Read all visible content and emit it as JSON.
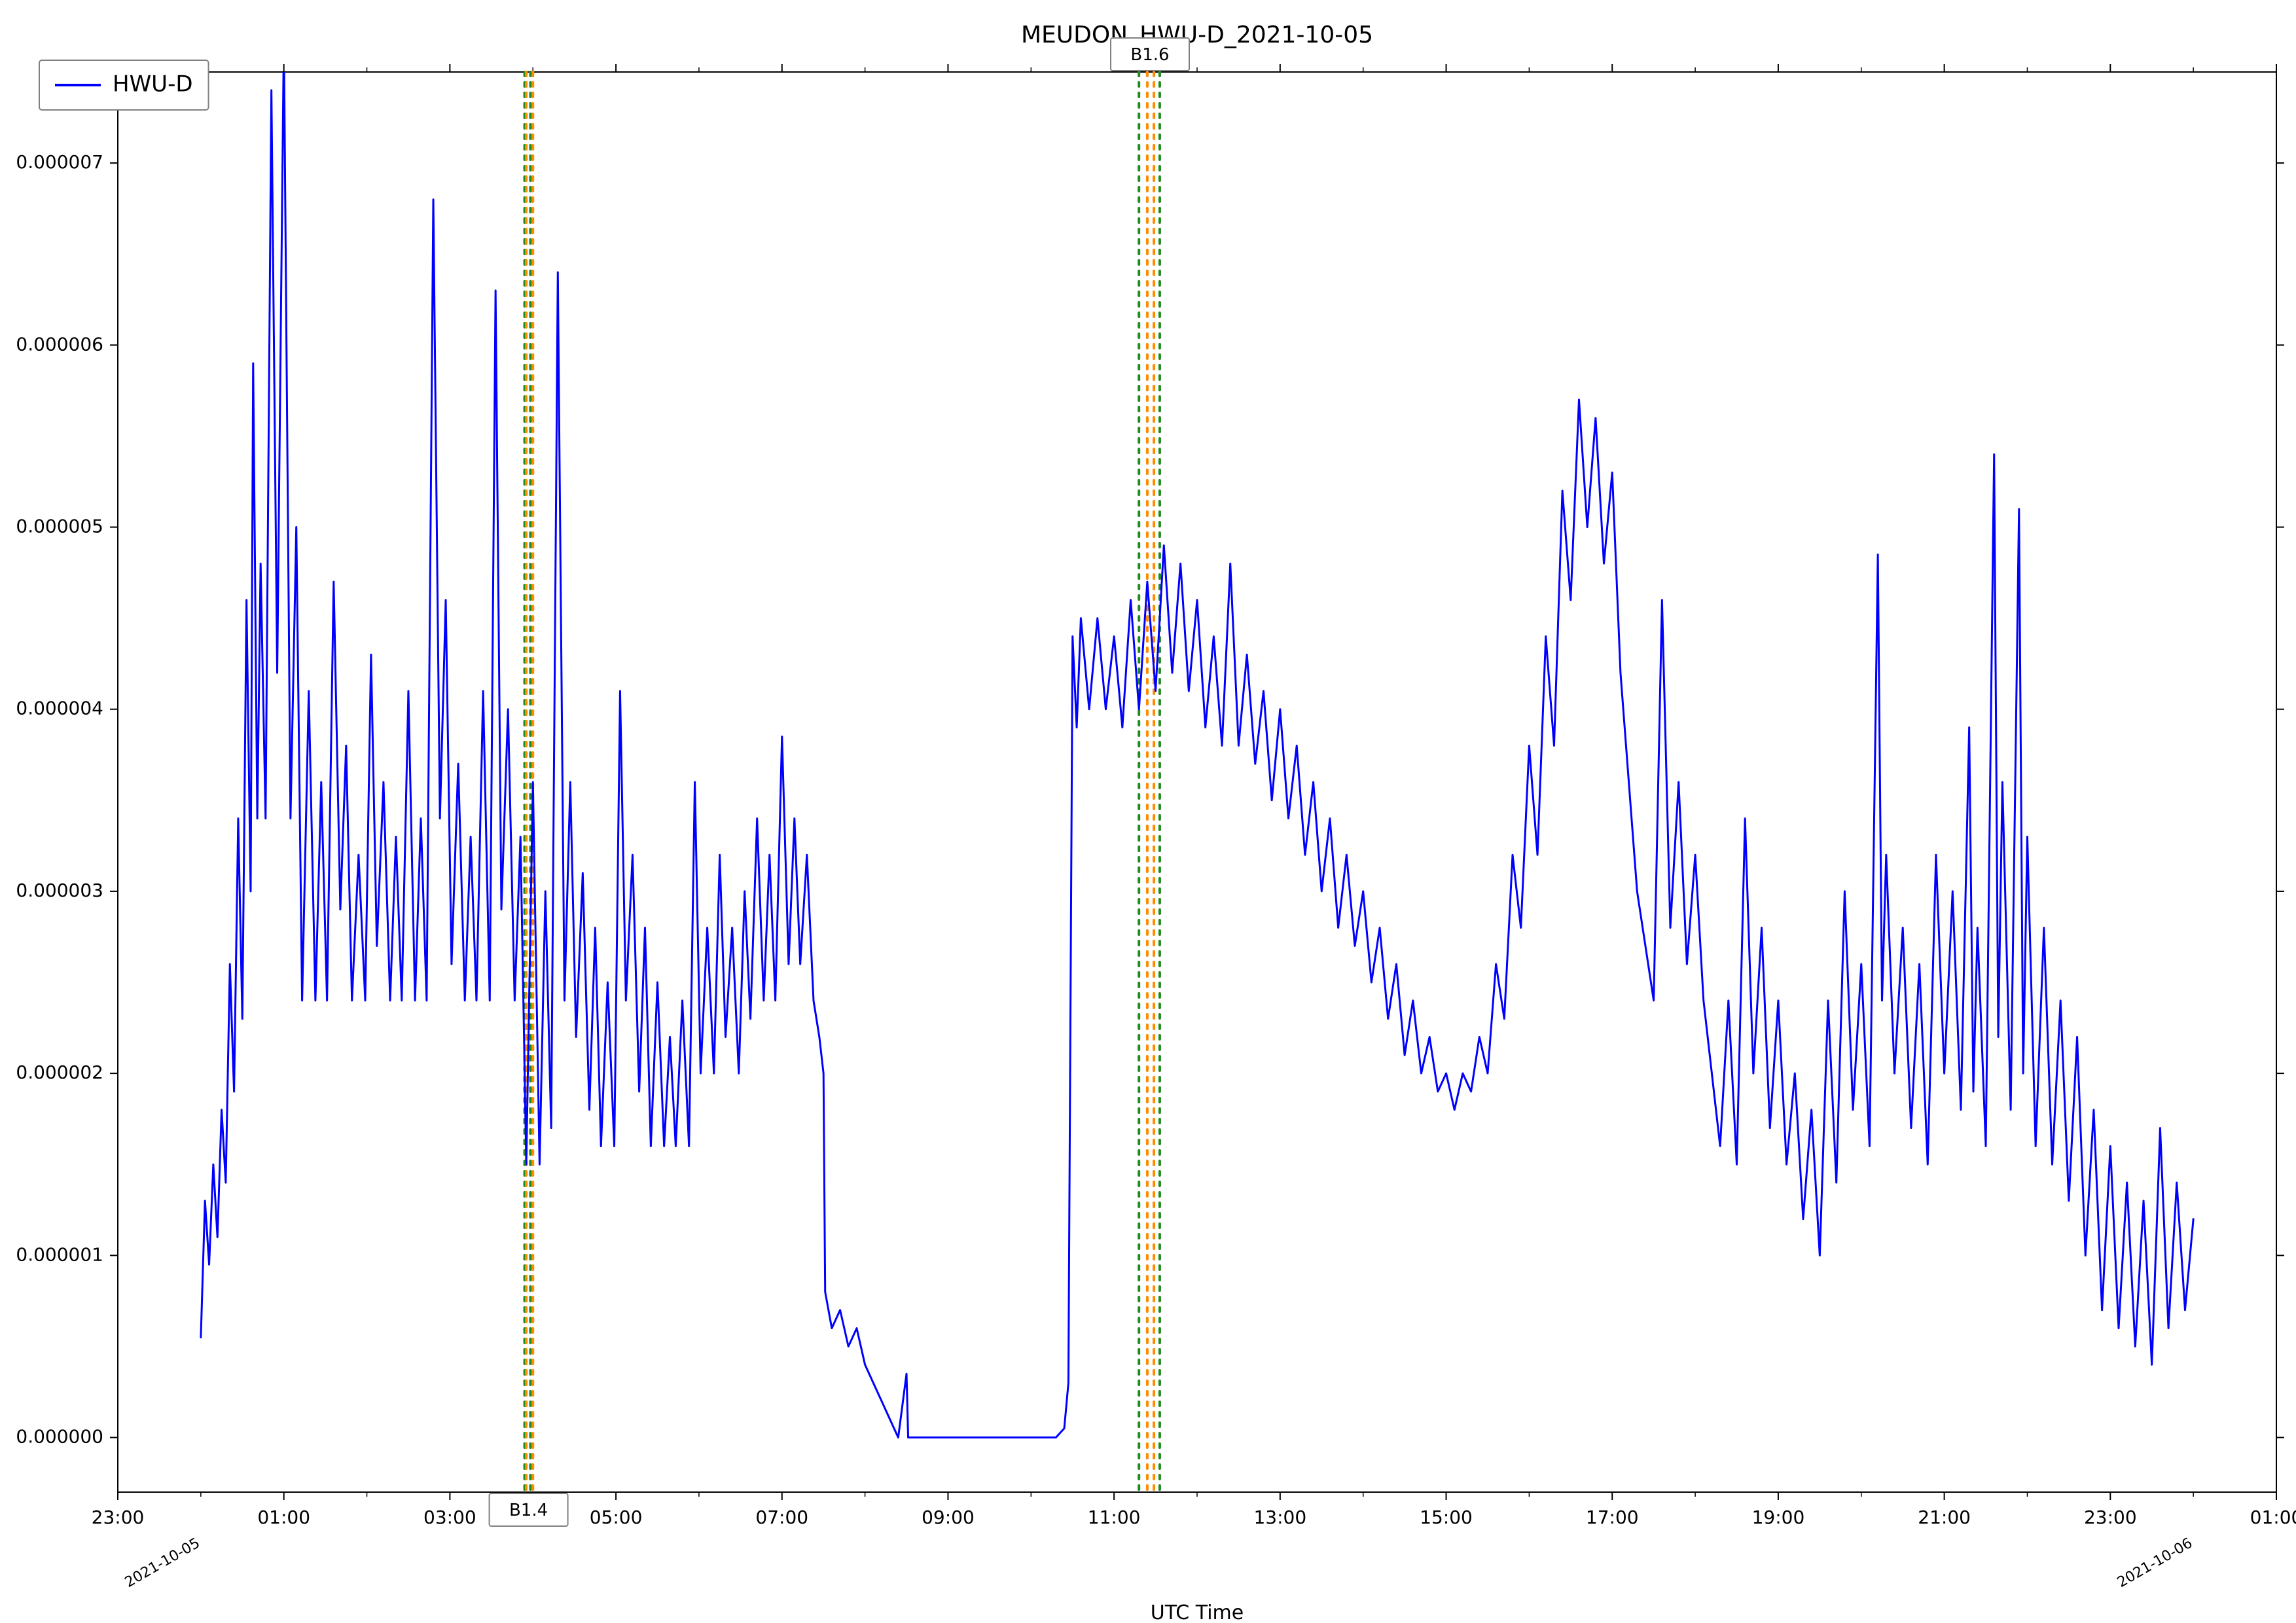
{
  "title": "MEUDON_HWU-D_2021-10-05",
  "title_fontsize": 36,
  "xlabel": "UTC Time",
  "label_fontsize": 30,
  "tick_fontsize": 28,
  "event_fontsize": 26,
  "legend_fontsize": 34,
  "secondary_date_fontsize": 22,
  "background_color": "#ffffff",
  "axis_color": "#000000",
  "line_color": "#0000ff",
  "line_width": 3,
  "event_green": "#228b22",
  "event_orange": "#ff8c00",
  "event_line_width": 4,
  "legend": {
    "label": "HWU-D",
    "color": "#0000ff"
  },
  "xlim": [
    -1.0,
    25.0
  ],
  "ylim": [
    -0.3,
    7.5
  ],
  "xticks": [
    -1,
    1,
    3,
    5,
    7,
    9,
    11,
    13,
    15,
    17,
    19,
    21,
    23,
    25
  ],
  "xtick_labels": [
    "23:00",
    "01:00",
    "03:00",
    "05:00",
    "07:00",
    "09:00",
    "11:00",
    "13:00",
    "15:00",
    "17:00",
    "19:00",
    "21:00",
    "23:00",
    "01:00"
  ],
  "yticks": [
    0,
    1,
    2,
    3,
    4,
    5,
    6,
    7
  ],
  "ytick_labels": [
    "0.000000",
    "0.000001",
    "0.000002",
    "0.000003",
    "0.000004",
    "0.000005",
    "0.000006",
    "0.000007"
  ],
  "secondary_dates": [
    {
      "x": 0.0,
      "text": "2021-10-05"
    },
    {
      "x": 24.0,
      "text": "2021-10-06"
    }
  ],
  "events": [
    {
      "id": "b14",
      "label": "B1.4",
      "label_pos": "bottom",
      "green": [
        3.9,
        3.97
      ],
      "orange": [
        3.92,
        4.0
      ]
    },
    {
      "id": "b16",
      "label": "B1.6",
      "label_pos": "top",
      "green": [
        11.3,
        11.55
      ],
      "orange": [
        11.4,
        11.48
      ]
    }
  ],
  "series": [
    {
      "x": 0.0,
      "y": 0.55
    },
    {
      "x": 0.05,
      "y": 1.3
    },
    {
      "x": 0.1,
      "y": 0.95
    },
    {
      "x": 0.15,
      "y": 1.5
    },
    {
      "x": 0.2,
      "y": 1.1
    },
    {
      "x": 0.25,
      "y": 1.8
    },
    {
      "x": 0.3,
      "y": 1.4
    },
    {
      "x": 0.35,
      "y": 2.6
    },
    {
      "x": 0.4,
      "y": 1.9
    },
    {
      "x": 0.45,
      "y": 3.4
    },
    {
      "x": 0.5,
      "y": 2.3
    },
    {
      "x": 0.55,
      "y": 4.6
    },
    {
      "x": 0.6,
      "y": 3.0
    },
    {
      "x": 0.63,
      "y": 5.9
    },
    {
      "x": 0.68,
      "y": 3.4
    },
    {
      "x": 0.72,
      "y": 4.8
    },
    {
      "x": 0.78,
      "y": 3.4
    },
    {
      "x": 0.85,
      "y": 7.4
    },
    {
      "x": 0.92,
      "y": 4.2
    },
    {
      "x": 1.0,
      "y": 7.7
    },
    {
      "x": 1.08,
      "y": 3.4
    },
    {
      "x": 1.15,
      "y": 5.0
    },
    {
      "x": 1.22,
      "y": 2.4
    },
    {
      "x": 1.3,
      "y": 4.1
    },
    {
      "x": 1.38,
      "y": 2.4
    },
    {
      "x": 1.45,
      "y": 3.6
    },
    {
      "x": 1.52,
      "y": 2.4
    },
    {
      "x": 1.6,
      "y": 4.7
    },
    {
      "x": 1.68,
      "y": 2.9
    },
    {
      "x": 1.75,
      "y": 3.8
    },
    {
      "x": 1.82,
      "y": 2.4
    },
    {
      "x": 1.9,
      "y": 3.2
    },
    {
      "x": 1.98,
      "y": 2.4
    },
    {
      "x": 2.05,
      "y": 4.3
    },
    {
      "x": 2.12,
      "y": 2.7
    },
    {
      "x": 2.2,
      "y": 3.6
    },
    {
      "x": 2.28,
      "y": 2.4
    },
    {
      "x": 2.35,
      "y": 3.3
    },
    {
      "x": 2.42,
      "y": 2.4
    },
    {
      "x": 2.5,
      "y": 4.1
    },
    {
      "x": 2.58,
      "y": 2.4
    },
    {
      "x": 2.65,
      "y": 3.4
    },
    {
      "x": 2.72,
      "y": 2.4
    },
    {
      "x": 2.8,
      "y": 6.8
    },
    {
      "x": 2.88,
      "y": 3.4
    },
    {
      "x": 2.95,
      "y": 4.6
    },
    {
      "x": 3.02,
      "y": 2.6
    },
    {
      "x": 3.1,
      "y": 3.7
    },
    {
      "x": 3.18,
      "y": 2.4
    },
    {
      "x": 3.25,
      "y": 3.3
    },
    {
      "x": 3.32,
      "y": 2.4
    },
    {
      "x": 3.4,
      "y": 4.1
    },
    {
      "x": 3.48,
      "y": 2.4
    },
    {
      "x": 3.55,
      "y": 6.3
    },
    {
      "x": 3.62,
      "y": 2.9
    },
    {
      "x": 3.7,
      "y": 4.0
    },
    {
      "x": 3.78,
      "y": 2.4
    },
    {
      "x": 3.85,
      "y": 3.3
    },
    {
      "x": 3.92,
      "y": 1.5
    },
    {
      "x": 4.0,
      "y": 3.6
    },
    {
      "x": 4.08,
      "y": 1.5
    },
    {
      "x": 4.15,
      "y": 3.0
    },
    {
      "x": 4.22,
      "y": 1.7
    },
    {
      "x": 4.3,
      "y": 6.4
    },
    {
      "x": 4.38,
      "y": 2.4
    },
    {
      "x": 4.45,
      "y": 3.6
    },
    {
      "x": 4.52,
      "y": 2.2
    },
    {
      "x": 4.6,
      "y": 3.1
    },
    {
      "x": 4.68,
      "y": 1.8
    },
    {
      "x": 4.75,
      "y": 2.8
    },
    {
      "x": 4.82,
      "y": 1.6
    },
    {
      "x": 4.9,
      "y": 2.5
    },
    {
      "x": 4.98,
      "y": 1.6
    },
    {
      "x": 5.05,
      "y": 4.1
    },
    {
      "x": 5.12,
      "y": 2.4
    },
    {
      "x": 5.2,
      "y": 3.2
    },
    {
      "x": 5.28,
      "y": 1.9
    },
    {
      "x": 5.35,
      "y": 2.8
    },
    {
      "x": 5.42,
      "y": 1.6
    },
    {
      "x": 5.5,
      "y": 2.5
    },
    {
      "x": 5.58,
      "y": 1.6
    },
    {
      "x": 5.65,
      "y": 2.2
    },
    {
      "x": 5.72,
      "y": 1.6
    },
    {
      "x": 5.8,
      "y": 2.4
    },
    {
      "x": 5.88,
      "y": 1.6
    },
    {
      "x": 5.95,
      "y": 3.6
    },
    {
      "x": 6.02,
      "y": 2.0
    },
    {
      "x": 6.1,
      "y": 2.8
    },
    {
      "x": 6.18,
      "y": 2.0
    },
    {
      "x": 6.25,
      "y": 3.2
    },
    {
      "x": 6.32,
      "y": 2.2
    },
    {
      "x": 6.4,
      "y": 2.8
    },
    {
      "x": 6.48,
      "y": 2.0
    },
    {
      "x": 6.55,
      "y": 3.0
    },
    {
      "x": 6.62,
      "y": 2.3
    },
    {
      "x": 6.7,
      "y": 3.4
    },
    {
      "x": 6.78,
      "y": 2.4
    },
    {
      "x": 6.85,
      "y": 3.2
    },
    {
      "x": 6.92,
      "y": 2.4
    },
    {
      "x": 7.0,
      "y": 3.85
    },
    {
      "x": 7.08,
      "y": 2.6
    },
    {
      "x": 7.15,
      "y": 3.4
    },
    {
      "x": 7.22,
      "y": 2.6
    },
    {
      "x": 7.3,
      "y": 3.2
    },
    {
      "x": 7.38,
      "y": 2.4
    },
    {
      "x": 7.45,
      "y": 2.2
    },
    {
      "x": 7.5,
      "y": 2.0
    },
    {
      "x": 7.52,
      "y": 0.8
    },
    {
      "x": 7.6,
      "y": 0.6
    },
    {
      "x": 7.7,
      "y": 0.7
    },
    {
      "x": 7.8,
      "y": 0.5
    },
    {
      "x": 7.9,
      "y": 0.6
    },
    {
      "x": 8.0,
      "y": 0.4
    },
    {
      "x": 8.1,
      "y": 0.3
    },
    {
      "x": 8.2,
      "y": 0.2
    },
    {
      "x": 8.3,
      "y": 0.1
    },
    {
      "x": 8.4,
      "y": 0.0
    },
    {
      "x": 8.5,
      "y": 0.35
    },
    {
      "x": 8.52,
      "y": 0.0
    },
    {
      "x": 8.7,
      "y": 0.0
    },
    {
      "x": 9.0,
      "y": 0.0
    },
    {
      "x": 9.5,
      "y": 0.0
    },
    {
      "x": 10.0,
      "y": 0.0
    },
    {
      "x": 10.3,
      "y": 0.0
    },
    {
      "x": 10.4,
      "y": 0.05
    },
    {
      "x": 10.45,
      "y": 0.3
    },
    {
      "x": 10.5,
      "y": 4.4
    },
    {
      "x": 10.55,
      "y": 3.9
    },
    {
      "x": 10.6,
      "y": 4.5
    },
    {
      "x": 10.7,
      "y": 4.0
    },
    {
      "x": 10.8,
      "y": 4.5
    },
    {
      "x": 10.9,
      "y": 4.0
    },
    {
      "x": 11.0,
      "y": 4.4
    },
    {
      "x": 11.1,
      "y": 3.9
    },
    {
      "x": 11.2,
      "y": 4.6
    },
    {
      "x": 11.3,
      "y": 4.0
    },
    {
      "x": 11.4,
      "y": 4.7
    },
    {
      "x": 11.5,
      "y": 4.1
    },
    {
      "x": 11.6,
      "y": 4.9
    },
    {
      "x": 11.7,
      "y": 4.2
    },
    {
      "x": 11.8,
      "y": 4.8
    },
    {
      "x": 11.9,
      "y": 4.1
    },
    {
      "x": 12.0,
      "y": 4.6
    },
    {
      "x": 12.1,
      "y": 3.9
    },
    {
      "x": 12.2,
      "y": 4.4
    },
    {
      "x": 12.3,
      "y": 3.8
    },
    {
      "x": 12.4,
      "y": 4.8
    },
    {
      "x": 12.5,
      "y": 3.8
    },
    {
      "x": 12.6,
      "y": 4.3
    },
    {
      "x": 12.7,
      "y": 3.7
    },
    {
      "x": 12.8,
      "y": 4.1
    },
    {
      "x": 12.9,
      "y": 3.5
    },
    {
      "x": 13.0,
      "y": 4.0
    },
    {
      "x": 13.1,
      "y": 3.4
    },
    {
      "x": 13.2,
      "y": 3.8
    },
    {
      "x": 13.3,
      "y": 3.2
    },
    {
      "x": 13.4,
      "y": 3.6
    },
    {
      "x": 13.5,
      "y": 3.0
    },
    {
      "x": 13.6,
      "y": 3.4
    },
    {
      "x": 13.7,
      "y": 2.8
    },
    {
      "x": 13.8,
      "y": 3.2
    },
    {
      "x": 13.9,
      "y": 2.7
    },
    {
      "x": 14.0,
      "y": 3.0
    },
    {
      "x": 14.1,
      "y": 2.5
    },
    {
      "x": 14.2,
      "y": 2.8
    },
    {
      "x": 14.3,
      "y": 2.3
    },
    {
      "x": 14.4,
      "y": 2.6
    },
    {
      "x": 14.5,
      "y": 2.1
    },
    {
      "x": 14.6,
      "y": 2.4
    },
    {
      "x": 14.7,
      "y": 2.0
    },
    {
      "x": 14.8,
      "y": 2.2
    },
    {
      "x": 14.9,
      "y": 1.9
    },
    {
      "x": 15.0,
      "y": 2.0
    },
    {
      "x": 15.1,
      "y": 1.8
    },
    {
      "x": 15.2,
      "y": 2.0
    },
    {
      "x": 15.3,
      "y": 1.9
    },
    {
      "x": 15.4,
      "y": 2.2
    },
    {
      "x": 15.5,
      "y": 2.0
    },
    {
      "x": 15.6,
      "y": 2.6
    },
    {
      "x": 15.7,
      "y": 2.3
    },
    {
      "x": 15.8,
      "y": 3.2
    },
    {
      "x": 15.9,
      "y": 2.8
    },
    {
      "x": 16.0,
      "y": 3.8
    },
    {
      "x": 16.1,
      "y": 3.2
    },
    {
      "x": 16.2,
      "y": 4.4
    },
    {
      "x": 16.3,
      "y": 3.8
    },
    {
      "x": 16.4,
      "y": 5.2
    },
    {
      "x": 16.5,
      "y": 4.6
    },
    {
      "x": 16.6,
      "y": 5.7
    },
    {
      "x": 16.7,
      "y": 5.0
    },
    {
      "x": 16.8,
      "y": 5.6
    },
    {
      "x": 16.9,
      "y": 4.8
    },
    {
      "x": 17.0,
      "y": 5.3
    },
    {
      "x": 17.1,
      "y": 4.2
    },
    {
      "x": 17.2,
      "y": 3.6
    },
    {
      "x": 17.3,
      "y": 3.0
    },
    {
      "x": 17.4,
      "y": 2.7
    },
    {
      "x": 17.5,
      "y": 2.4
    },
    {
      "x": 17.6,
      "y": 4.6
    },
    {
      "x": 17.7,
      "y": 2.8
    },
    {
      "x": 17.8,
      "y": 3.6
    },
    {
      "x": 17.9,
      "y": 2.6
    },
    {
      "x": 18.0,
      "y": 3.2
    },
    {
      "x": 18.1,
      "y": 2.4
    },
    {
      "x": 18.2,
      "y": 2.0
    },
    {
      "x": 18.3,
      "y": 1.6
    },
    {
      "x": 18.4,
      "y": 2.4
    },
    {
      "x": 18.5,
      "y": 1.5
    },
    {
      "x": 18.6,
      "y": 3.4
    },
    {
      "x": 18.7,
      "y": 2.0
    },
    {
      "x": 18.8,
      "y": 2.8
    },
    {
      "x": 18.9,
      "y": 1.7
    },
    {
      "x": 19.0,
      "y": 2.4
    },
    {
      "x": 19.1,
      "y": 1.5
    },
    {
      "x": 19.2,
      "y": 2.0
    },
    {
      "x": 19.3,
      "y": 1.2
    },
    {
      "x": 19.4,
      "y": 1.8
    },
    {
      "x": 19.5,
      "y": 1.0
    },
    {
      "x": 19.6,
      "y": 2.4
    },
    {
      "x": 19.7,
      "y": 1.4
    },
    {
      "x": 19.8,
      "y": 3.0
    },
    {
      "x": 19.9,
      "y": 1.8
    },
    {
      "x": 20.0,
      "y": 2.6
    },
    {
      "x": 20.1,
      "y": 1.6
    },
    {
      "x": 20.2,
      "y": 4.85
    },
    {
      "x": 20.25,
      "y": 2.4
    },
    {
      "x": 20.3,
      "y": 3.2
    },
    {
      "x": 20.4,
      "y": 2.0
    },
    {
      "x": 20.5,
      "y": 2.8
    },
    {
      "x": 20.6,
      "y": 1.7
    },
    {
      "x": 20.7,
      "y": 2.6
    },
    {
      "x": 20.8,
      "y": 1.5
    },
    {
      "x": 20.9,
      "y": 3.2
    },
    {
      "x": 21.0,
      "y": 2.0
    },
    {
      "x": 21.1,
      "y": 3.0
    },
    {
      "x": 21.2,
      "y": 1.8
    },
    {
      "x": 21.3,
      "y": 3.9
    },
    {
      "x": 21.35,
      "y": 1.9
    },
    {
      "x": 21.4,
      "y": 2.8
    },
    {
      "x": 21.5,
      "y": 1.6
    },
    {
      "x": 21.6,
      "y": 5.4
    },
    {
      "x": 21.65,
      "y": 2.2
    },
    {
      "x": 21.7,
      "y": 3.6
    },
    {
      "x": 21.8,
      "y": 1.8
    },
    {
      "x": 21.9,
      "y": 5.1
    },
    {
      "x": 21.95,
      "y": 2.0
    },
    {
      "x": 22.0,
      "y": 3.3
    },
    {
      "x": 22.1,
      "y": 1.6
    },
    {
      "x": 22.2,
      "y": 2.8
    },
    {
      "x": 22.3,
      "y": 1.5
    },
    {
      "x": 22.4,
      "y": 2.4
    },
    {
      "x": 22.5,
      "y": 1.3
    },
    {
      "x": 22.6,
      "y": 2.2
    },
    {
      "x": 22.7,
      "y": 1.0
    },
    {
      "x": 22.8,
      "y": 1.8
    },
    {
      "x": 22.9,
      "y": 0.7
    },
    {
      "x": 23.0,
      "y": 1.6
    },
    {
      "x": 23.1,
      "y": 0.6
    },
    {
      "x": 23.2,
      "y": 1.4
    },
    {
      "x": 23.3,
      "y": 0.5
    },
    {
      "x": 23.4,
      "y": 1.3
    },
    {
      "x": 23.5,
      "y": 0.4
    },
    {
      "x": 23.6,
      "y": 1.7
    },
    {
      "x": 23.7,
      "y": 0.6
    },
    {
      "x": 23.8,
      "y": 1.4
    },
    {
      "x": 23.9,
      "y": 0.7
    },
    {
      "x": 24.0,
      "y": 1.2
    }
  ]
}
